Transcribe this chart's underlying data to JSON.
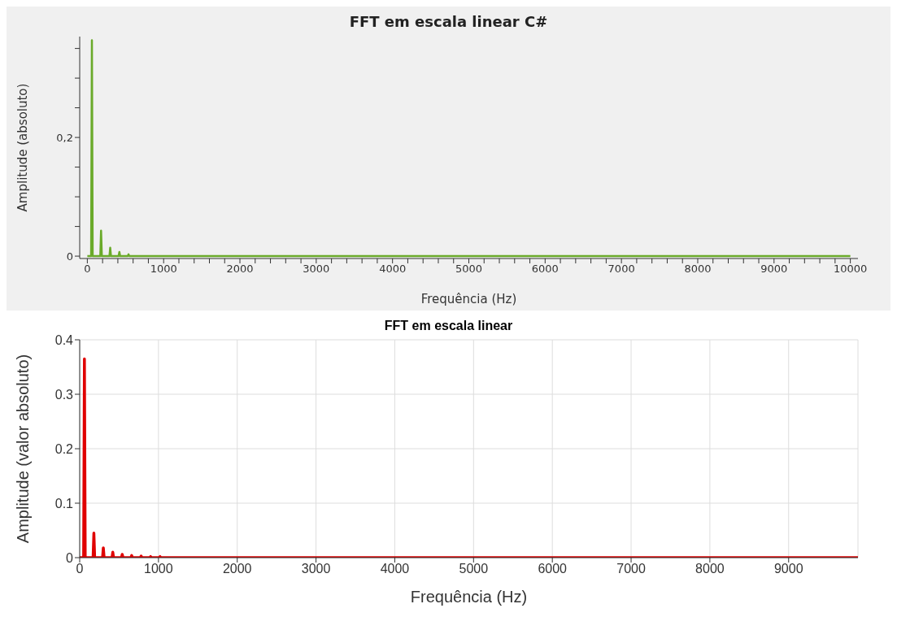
{
  "chart_data": [
    {
      "type": "line",
      "title": "FFT em escala linear C#",
      "xlabel": "Frequência (Hz)",
      "ylabel": "Amplitude (absoluto)",
      "x": [
        0,
        50,
        60,
        70,
        170,
        180,
        190,
        290,
        300,
        310,
        410,
        420,
        430,
        530,
        540,
        550,
        10000
      ],
      "series": [
        {
          "color": "#6aaa2a",
          "values": [
            0,
            0,
            0.364,
            0,
            0,
            0.043,
            0,
            0,
            0.014,
            0,
            0,
            0.007,
            0,
            0,
            0.003,
            0,
            0
          ]
        }
      ],
      "xlim": [
        -100,
        10100
      ],
      "xticks": [
        0,
        {
          "value": 200,
          "label": null
        },
        {
          "value": 400,
          "label": null
        },
        {
          "value": 600,
          "label": null
        },
        {
          "value": 800,
          "label": null
        },
        1000,
        {
          "value": 1200,
          "label": null
        },
        {
          "value": 1400,
          "label": null
        },
        {
          "value": 1600,
          "label": null
        },
        {
          "value": 1800,
          "label": null
        },
        2000,
        {
          "value": 2200,
          "label": null
        },
        {
          "value": 2400,
          "label": null
        },
        {
          "value": 2600,
          "label": null
        },
        {
          "value": 2800,
          "label": null
        },
        3000,
        {
          "value": 3200,
          "label": null
        },
        {
          "value": 3400,
          "label": null
        },
        {
          "value": 3600,
          "label": null
        },
        {
          "value": 3800,
          "label": null
        },
        4000,
        {
          "value": 4200,
          "label": null
        },
        {
          "value": 4400,
          "label": null
        },
        {
          "value": 4600,
          "label": null
        },
        {
          "value": 4800,
          "label": null
        },
        5000,
        {
          "value": 5200,
          "label": null
        },
        {
          "value": 5400,
          "label": null
        },
        {
          "value": 5600,
          "label": null
        },
        {
          "value": 5800,
          "label": null
        },
        6000,
        {
          "value": 6200,
          "label": null
        },
        {
          "value": 6400,
          "label": null
        },
        {
          "value": 6600,
          "label": null
        },
        {
          "value": 6800,
          "label": null
        },
        7000,
        {
          "value": 7200,
          "label": null
        },
        {
          "value": 7400,
          "label": null
        },
        {
          "value": 7600,
          "label": null
        },
        {
          "value": 7800,
          "label": null
        },
        8000,
        {
          "value": 8200,
          "label": null
        },
        {
          "value": 8400,
          "label": null
        },
        {
          "value": 8600,
          "label": null
        },
        {
          "value": 8800,
          "label": null
        },
        9000,
        {
          "value": 9200,
          "label": null
        },
        {
          "value": 9400,
          "label": null
        },
        {
          "value": 9600,
          "label": null
        },
        {
          "value": 9800,
          "label": null
        },
        10000
      ],
      "ylim": [
        -0.004,
        0.37
      ],
      "yticks": [
        0,
        {
          "value": 0.05,
          "label": null
        },
        {
          "value": 0.1,
          "label": null
        },
        {
          "value": 0.15,
          "label": null
        },
        {
          "value": 0.2,
          "label": "0,2"
        },
        {
          "value": 0.25,
          "label": null
        },
        {
          "value": 0.3,
          "label": null
        },
        {
          "value": 0.35,
          "label": null
        }
      ],
      "grid": false,
      "marker": "none",
      "line_style": "solid"
    },
    {
      "type": "line",
      "title": "FFT em escala linear",
      "xlabel": "Frequência (Hz)",
      "ylabel": "Amplitude (valor absoluto)",
      "x": [
        0,
        50,
        60,
        70,
        170,
        180,
        190,
        290,
        300,
        310,
        410,
        420,
        430,
        530,
        540,
        550,
        650,
        660,
        670,
        770,
        780,
        790,
        890,
        900,
        910,
        1010,
        1020,
        1030,
        9880
      ],
      "series": [
        {
          "color": "#e00000",
          "values": [
            0,
            0,
            0.365,
            0,
            0,
            0.045,
            0,
            0,
            0.018,
            0,
            0,
            0.01,
            0,
            0,
            0.006,
            0,
            0,
            0.004,
            0,
            0,
            0.003,
            0,
            0,
            0.002,
            0,
            0,
            0.002,
            0,
            0
          ]
        }
      ],
      "xlim": [
        0,
        9880
      ],
      "xticks": [
        0,
        1000,
        2000,
        3000,
        4000,
        5000,
        6000,
        7000,
        8000,
        9000
      ],
      "ylim": [
        0,
        0.4
      ],
      "yticks": [
        0,
        0.1,
        0.2,
        0.3,
        0.4
      ],
      "grid": true,
      "marker": "none",
      "line_style": "solid"
    }
  ]
}
